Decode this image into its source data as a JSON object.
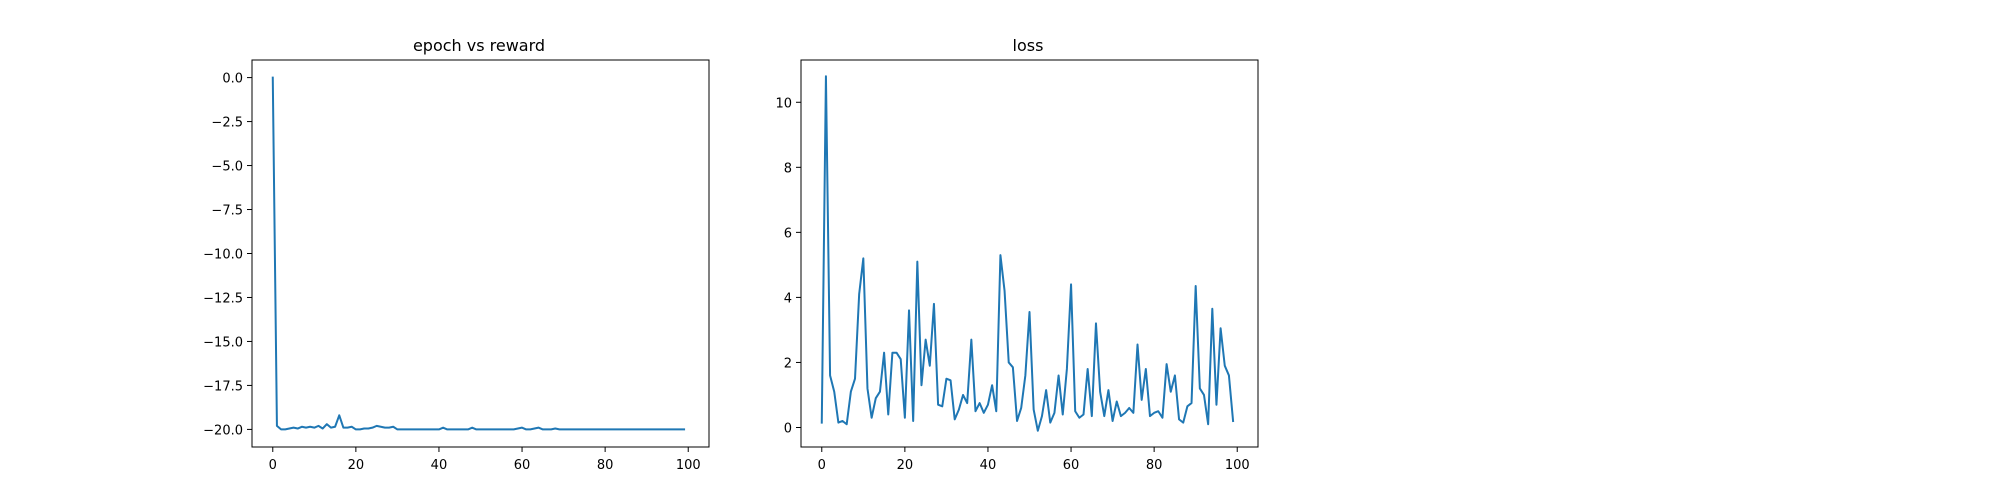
{
  "chart_data": [
    {
      "type": "line",
      "title": "epoch vs reward",
      "xlabel": "",
      "ylabel": "",
      "xlim": [
        -5,
        105
      ],
      "ylim": [
        -21,
        1
      ],
      "grid": false,
      "xticks": [
        0,
        20,
        40,
        60,
        80,
        100
      ],
      "yticks": [
        0.0,
        -2.5,
        -5.0,
        -7.5,
        -10.0,
        -12.5,
        -15.0,
        -17.5,
        -20.0
      ],
      "xtick_labels": [
        "0",
        "20",
        "40",
        "60",
        "80",
        "100"
      ],
      "ytick_labels": [
        "0.0",
        "−2.5",
        "−5.0",
        "−7.5",
        "−10.0",
        "−12.5",
        "−15.0",
        "−17.5",
        "−20.0"
      ],
      "color": "#1f77b4",
      "series": [
        {
          "x": [
            0,
            1,
            2,
            3,
            4,
            5,
            6,
            7,
            8,
            9,
            10,
            11,
            12,
            13,
            14,
            15,
            16,
            17,
            18,
            19,
            20,
            21,
            22,
            23,
            24,
            25,
            26,
            27,
            28,
            29,
            30,
            31,
            32,
            33,
            34,
            35,
            36,
            37,
            38,
            39,
            40,
            41,
            42,
            43,
            44,
            45,
            46,
            47,
            48,
            49,
            50,
            51,
            52,
            53,
            54,
            55,
            56,
            57,
            58,
            59,
            60,
            61,
            62,
            63,
            64,
            65,
            66,
            67,
            68,
            69,
            70,
            71,
            72,
            73,
            74,
            75,
            76,
            77,
            78,
            79,
            80,
            81,
            82,
            83,
            84,
            85,
            86,
            87,
            88,
            89,
            90,
            91,
            92,
            93,
            94,
            95,
            96,
            97,
            98,
            99
          ],
          "y": [
            0.0,
            -19.8,
            -20.0,
            -20.0,
            -19.95,
            -19.9,
            -19.95,
            -19.85,
            -19.9,
            -19.85,
            -19.9,
            -19.8,
            -19.95,
            -19.7,
            -19.9,
            -19.85,
            -19.2,
            -19.9,
            -19.9,
            -19.85,
            -20.0,
            -20.0,
            -19.95,
            -19.95,
            -19.9,
            -19.8,
            -19.85,
            -19.9,
            -19.9,
            -19.85,
            -20.0,
            -20.0,
            -20.0,
            -20.0,
            -20.0,
            -20.0,
            -20.0,
            -20.0,
            -20.0,
            -20.0,
            -20.0,
            -19.9,
            -20.0,
            -20.0,
            -20.0,
            -20.0,
            -20.0,
            -20.0,
            -19.9,
            -20.0,
            -20.0,
            -20.0,
            -20.0,
            -20.0,
            -20.0,
            -20.0,
            -20.0,
            -20.0,
            -20.0,
            -19.95,
            -19.9,
            -20.0,
            -20.0,
            -19.95,
            -19.9,
            -20.0,
            -20.0,
            -20.0,
            -19.95,
            -20.0,
            -20.0,
            -20.0,
            -20.0,
            -20.0,
            -20.0,
            -20.0,
            -20.0,
            -20.0,
            -20.0,
            -20.0,
            -20.0,
            -20.0,
            -20.0,
            -20.0,
            -20.0,
            -20.0,
            -20.0,
            -20.0,
            -20.0,
            -20.0,
            -20.0,
            -20.0,
            -20.0,
            -20.0,
            -20.0,
            -20.0,
            -20.0,
            -20.0,
            -20.0,
            -20.0
          ]
        }
      ]
    },
    {
      "type": "line",
      "title": "loss",
      "xlabel": "",
      "ylabel": "",
      "xlim": [
        -5,
        105
      ],
      "ylim": [
        -0.6,
        11.3
      ],
      "grid": false,
      "xticks": [
        0,
        20,
        40,
        60,
        80,
        100
      ],
      "yticks": [
        0,
        2,
        4,
        6,
        8,
        10
      ],
      "xtick_labels": [
        "0",
        "20",
        "40",
        "60",
        "80",
        "100"
      ],
      "ytick_labels": [
        "0",
        "2",
        "4",
        "6",
        "8",
        "10"
      ],
      "color": "#1f77b4",
      "series": [
        {
          "x": [
            0,
            1,
            2,
            3,
            4,
            5,
            6,
            7,
            8,
            9,
            10,
            11,
            12,
            13,
            14,
            15,
            16,
            17,
            18,
            19,
            20,
            21,
            22,
            23,
            24,
            25,
            26,
            27,
            28,
            29,
            30,
            31,
            32,
            33,
            34,
            35,
            36,
            37,
            38,
            39,
            40,
            41,
            42,
            43,
            44,
            45,
            46,
            47,
            48,
            49,
            50,
            51,
            52,
            53,
            54,
            55,
            56,
            57,
            58,
            59,
            60,
            61,
            62,
            63,
            64,
            65,
            66,
            67,
            68,
            69,
            70,
            71,
            72,
            73,
            74,
            75,
            76,
            77,
            78,
            79,
            80,
            81,
            82,
            83,
            84,
            85,
            86,
            87,
            88,
            89,
            90,
            91,
            92,
            93,
            94,
            95,
            96,
            97,
            98,
            99
          ],
          "y": [
            0.15,
            10.8,
            1.6,
            1.1,
            0.15,
            0.2,
            0.1,
            1.1,
            1.5,
            4.1,
            5.2,
            1.2,
            0.3,
            0.9,
            1.1,
            2.3,
            0.4,
            2.3,
            2.3,
            2.1,
            0.3,
            3.6,
            0.2,
            5.1,
            1.3,
            2.7,
            1.9,
            3.8,
            0.7,
            0.65,
            1.5,
            1.45,
            0.25,
            0.55,
            1.0,
            0.75,
            2.7,
            0.5,
            0.75,
            0.45,
            0.7,
            1.3,
            0.5,
            5.3,
            4.2,
            2.0,
            1.85,
            0.2,
            0.6,
            1.6,
            3.55,
            0.55,
            -0.1,
            0.35,
            1.15,
            0.15,
            0.45,
            1.6,
            0.4,
            1.8,
            4.4,
            0.5,
            0.3,
            0.4,
            1.8,
            0.35,
            3.2,
            1.1,
            0.35,
            1.15,
            0.2,
            0.8,
            0.35,
            0.45,
            0.6,
            0.45,
            2.55,
            0.85,
            1.8,
            0.35,
            0.45,
            0.5,
            0.3,
            1.95,
            1.1,
            1.6,
            0.25,
            0.15,
            0.65,
            0.75,
            4.35,
            1.2,
            1.0,
            0.1,
            3.65,
            0.7,
            3.05,
            1.9,
            1.6,
            0.2
          ]
        }
      ]
    }
  ]
}
